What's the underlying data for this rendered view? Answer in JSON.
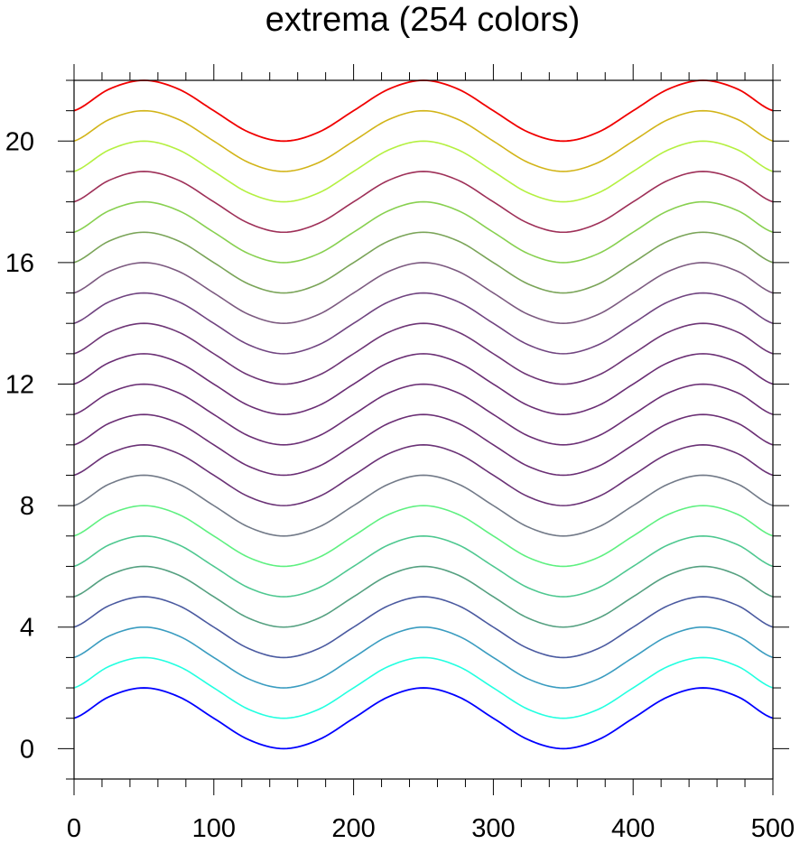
{
  "chart_data": {
    "type": "line",
    "title": "extrema (254 colors)",
    "xlim": [
      0,
      500
    ],
    "ylim": [
      -1,
      22
    ],
    "x_ticks": [
      "0",
      "100",
      "200",
      "300",
      "400",
      "500"
    ],
    "y_ticks": [
      "0",
      "4",
      "8",
      "12",
      "16",
      "20"
    ],
    "grid": false,
    "legend": "none",
    "x_sample": [
      0,
      25,
      50,
      75,
      100,
      125,
      150,
      175,
      200,
      225,
      250,
      275,
      300,
      325,
      350,
      375,
      400,
      425,
      450,
      475,
      500
    ],
    "base_curve": [
      1.0,
      1.707,
      2.0,
      1.707,
      1.0,
      0.293,
      0.0,
      0.293,
      1.0,
      1.707,
      2.0,
      1.707,
      1.0,
      0.293,
      0.0,
      0.293,
      1.0,
      1.707,
      2.0,
      1.707,
      1.0
    ],
    "series": [
      {
        "offset": 0,
        "color": "#0000ff"
      },
      {
        "offset": 1,
        "color": "#22ffe0"
      },
      {
        "offset": 2,
        "color": "#3a9cc0"
      },
      {
        "offset": 3,
        "color": "#4a5aa0"
      },
      {
        "offset": 4,
        "color": "#54a080"
      },
      {
        "offset": 5,
        "color": "#4ec890"
      },
      {
        "offset": 6,
        "color": "#5ef080"
      },
      {
        "offset": 7,
        "color": "#727a88"
      },
      {
        "offset": 8,
        "color": "#6a3276"
      },
      {
        "offset": 9,
        "color": "#6a2e74"
      },
      {
        "offset": 10,
        "color": "#6a2e74"
      },
      {
        "offset": 11,
        "color": "#6a2e74"
      },
      {
        "offset": 12,
        "color": "#6e3676"
      },
      {
        "offset": 13,
        "color": "#704480"
      },
      {
        "offset": 14,
        "color": "#7c5a80"
      },
      {
        "offset": 15,
        "color": "#7aa458"
      },
      {
        "offset": 16,
        "color": "#88d050"
      },
      {
        "offset": 17,
        "color": "#9e3058"
      },
      {
        "offset": 18,
        "color": "#b4f040"
      },
      {
        "offset": 19,
        "color": "#d2b418"
      },
      {
        "offset": 20,
        "color": "#f00000"
      }
    ]
  }
}
